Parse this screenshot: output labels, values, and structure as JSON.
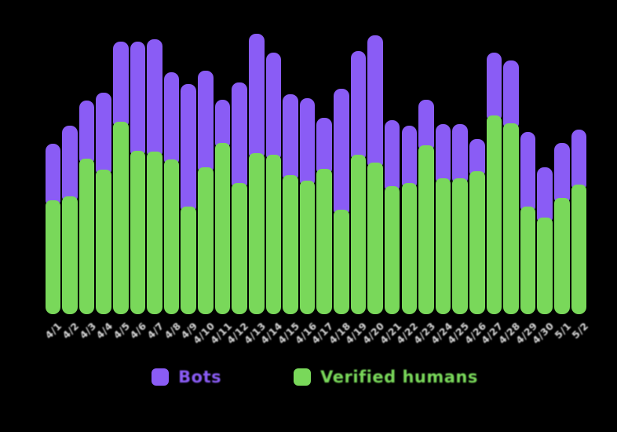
{
  "background_color": "#000000",
  "chart_data": {
    "type": "bar",
    "stacked": true,
    "title": "",
    "xlabel": "",
    "ylabel": "",
    "grid": false,
    "y_axis_visible": false,
    "legend_position": "bottom-center",
    "tick_label_color": "#d7d7d7",
    "tick_label_rotation_deg": -45,
    "ylim": [
      0,
      390
    ],
    "categories": [
      "4/1",
      "4/2",
      "4/3",
      "4/4",
      "4/5",
      "4/6",
      "4/7",
      "4/8",
      "4/9",
      "4/10",
      "4/11",
      "4/12",
      "4/13",
      "4/14",
      "4/15",
      "4/16",
      "4/17",
      "4/18",
      "4/19",
      "4/20",
      "4/21",
      "4/22",
      "4/23",
      "4/24",
      "4/25",
      "4/26",
      "4/27",
      "4/28",
      "4/29",
      "4/30",
      "5/1",
      "5/2"
    ],
    "series": [
      {
        "name": "Bots",
        "color": "#8a5cf5",
        "values": [
          72,
          90,
          74,
          98,
          102,
          139,
          143,
          111,
          156,
          123,
          55,
          128,
          152,
          130,
          103,
          105,
          65,
          154,
          132,
          162,
          84,
          73,
          58,
          69,
          69,
          41,
          80,
          80,
          95,
          64,
          70,
          70
        ]
      },
      {
        "name": "Verified humans",
        "color": "#79d85a",
        "values": [
          145,
          150,
          198,
          184,
          245,
          208,
          207,
          197,
          137,
          187,
          218,
          167,
          205,
          203,
          177,
          170,
          185,
          133,
          203,
          193,
          163,
          167,
          215,
          173,
          173,
          182,
          253,
          243,
          137,
          123,
          148,
          165
        ]
      }
    ]
  },
  "legend": {
    "items": [
      {
        "label": "Bots",
        "color": "#8a5cf5",
        "swatch": "rounded-square"
      },
      {
        "label": "Verified humans",
        "color": "#79d85a",
        "swatch": "rounded-square"
      }
    ]
  }
}
